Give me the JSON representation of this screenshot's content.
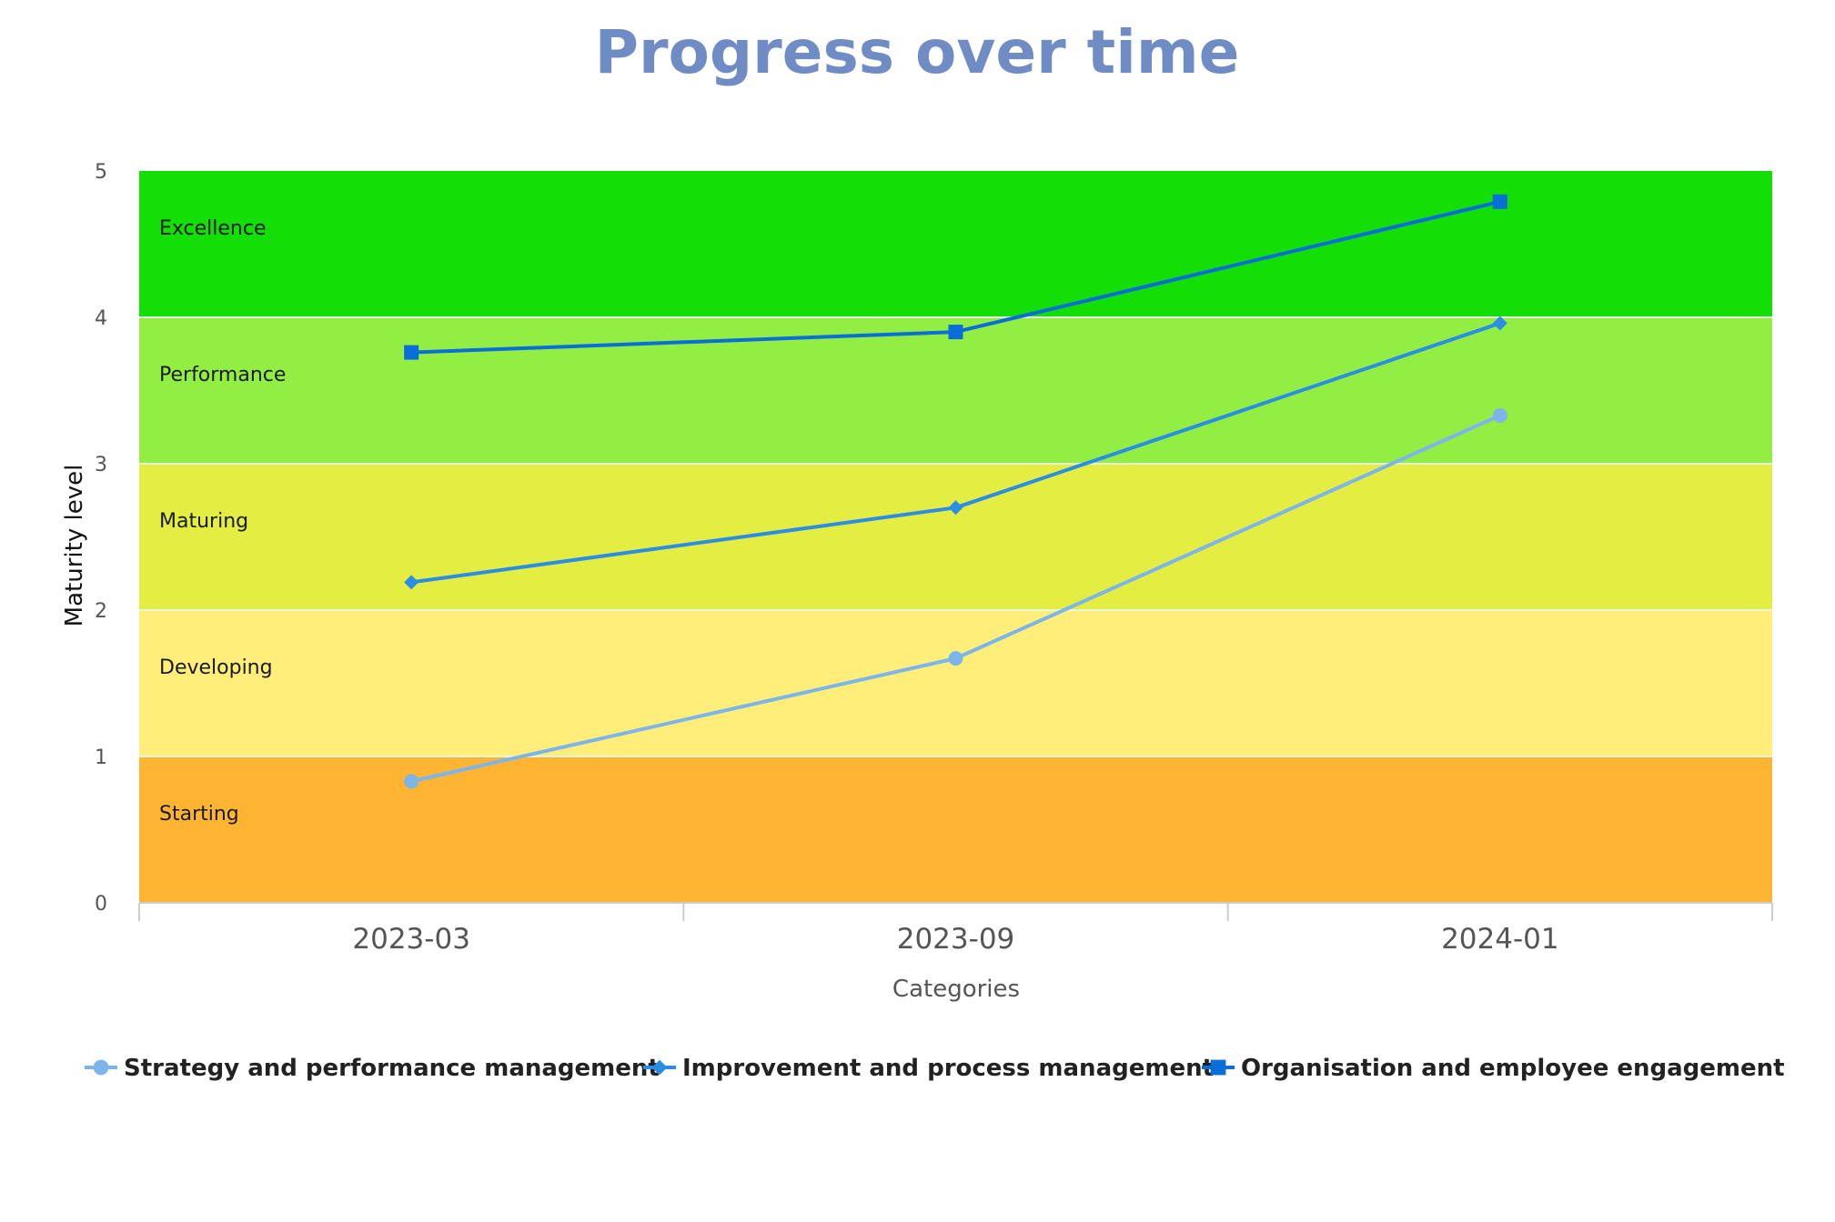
{
  "chart_data": {
    "type": "line",
    "title": "Progress over time",
    "xlabel": "Categories",
    "ylabel": "Maturity level",
    "categories": [
      "2023-03",
      "2023-09",
      "2024-01"
    ],
    "ylim": [
      0,
      5
    ],
    "yticks": [
      0,
      1,
      2,
      3,
      4,
      5
    ],
    "bands": [
      {
        "from": 0,
        "to": 1,
        "label": "Starting",
        "color": "#ffb432"
      },
      {
        "from": 1,
        "to": 2,
        "label": "Developing",
        "color": "#ffee7a"
      },
      {
        "from": 2,
        "to": 3,
        "label": "Maturing",
        "color": "#e3ed42"
      },
      {
        "from": 3,
        "to": 4,
        "label": "Performance",
        "color": "#92ee42"
      },
      {
        "from": 4,
        "to": 5,
        "label": "Excellence",
        "color": "#13de06"
      }
    ],
    "series": [
      {
        "name": "Strategy and performance management",
        "values": [
          0.83,
          1.67,
          3.33
        ],
        "color": "#7cb5ec",
        "marker": "circle"
      },
      {
        "name": "Improvement and process management",
        "values": [
          2.19,
          2.7,
          3.96
        ],
        "color": "#2b8ee6",
        "marker": "diamond"
      },
      {
        "name": "Organisation and employee engagement",
        "values": [
          3.76,
          3.9,
          4.79
        ],
        "color": "#0a6ed8",
        "marker": "square"
      }
    ],
    "grid": false,
    "legend_position": "bottom"
  }
}
